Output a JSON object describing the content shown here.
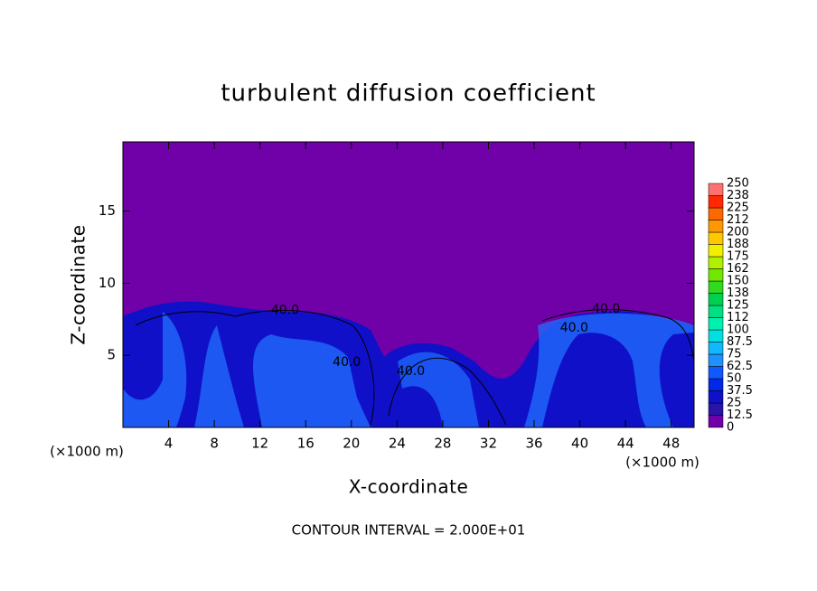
{
  "chart_data": {
    "type": "contour",
    "title": "turbulent diffusion coefficient",
    "x_label": "X-coordinate",
    "y_label": "Z-coordinate",
    "unit_label": "(×1000 m)",
    "note": "CONTOUR INTERVAL = 2.000E+01",
    "xlim": [
      0,
      50
    ],
    "xticks": [
      4,
      8,
      12,
      16,
      20,
      24,
      28,
      32,
      36,
      40,
      44,
      48
    ],
    "ylim": [
      0,
      19.8
    ],
    "yticks": [
      5,
      10,
      15
    ],
    "contour_labels": [
      {
        "x": 14.2,
        "y": 8.1,
        "text": "40.0"
      },
      {
        "x": 19.6,
        "y": 4.5,
        "text": "40.0"
      },
      {
        "x": 25.2,
        "y": 3.9,
        "text": "40.0"
      },
      {
        "x": 42.3,
        "y": 8.2,
        "text": "40.0"
      },
      {
        "x": 39.5,
        "y": 6.9,
        "text": "40.0"
      }
    ],
    "colorbar": {
      "levels": [
        0,
        12.5,
        25,
        37.5,
        50,
        62.5,
        75,
        87.5,
        100,
        112,
        125,
        138,
        150,
        162,
        175,
        188,
        200,
        212,
        225,
        238,
        250
      ],
      "colors": [
        "#7000a8",
        "#2a14a8",
        "#1010c8",
        "#0028e8",
        "#1058ff",
        "#2090ff",
        "#10b8ff",
        "#00e0e0",
        "#00f0b0",
        "#00e080",
        "#00d050",
        "#30d820",
        "#70e800",
        "#b0f000",
        "#f0f000",
        "#ffc800",
        "#ff9800",
        "#ff6800",
        "#ff2800",
        "#ff7070"
      ]
    }
  }
}
